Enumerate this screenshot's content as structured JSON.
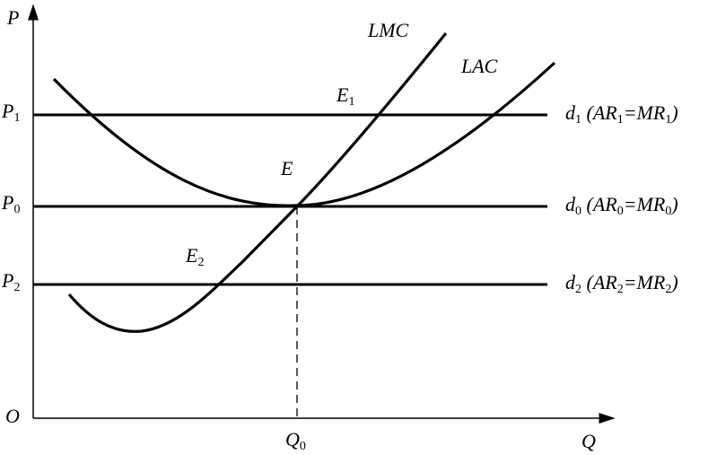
{
  "axes": {
    "vertical": "P",
    "horizontal": "Q",
    "origin": "O"
  },
  "levels": [
    {
      "price": [
        "P",
        "1"
      ],
      "demand": [
        "d",
        "1",
        " (AR",
        "1",
        "=MR",
        "1",
        ")"
      ]
    },
    {
      "price": [
        "P",
        "0"
      ],
      "demand": [
        "d",
        "0",
        " (AR",
        "0",
        "=MR",
        "0",
        ")"
      ]
    },
    {
      "price": [
        "P",
        "2"
      ],
      "demand": [
        "d",
        "2",
        " (AR",
        "2",
        "=MR",
        "2",
        ")"
      ]
    }
  ],
  "curves": {
    "lmc": "LMC",
    "lac": "LAC"
  },
  "points": {
    "e1": [
      "E",
      "1"
    ],
    "e": [
      "E"
    ],
    "e2": [
      "E",
      "2"
    ]
  },
  "quantity": [
    "Q",
    "0"
  ]
}
